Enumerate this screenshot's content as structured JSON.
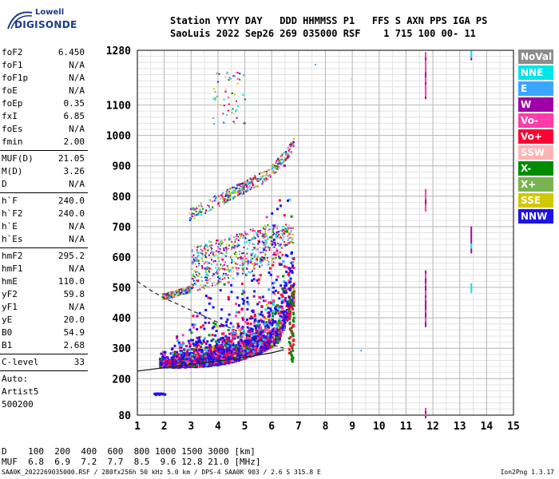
{
  "logo": {
    "top": "Lowell",
    "bottom": "DIGISONDE"
  },
  "header": {
    "line1": "Station YYYY DAY   DDD HHMMSS P1   FFS S AXN PPS IGA PS",
    "line2": "SaoLuis 2022 Sep26 269 035000 RSF    1 715 100 00- 11"
  },
  "params": [
    {
      "name": "foF2",
      "value": "6.450"
    },
    {
      "name": "foF1",
      "value": "N/A"
    },
    {
      "name": "foF1p",
      "value": "N/A"
    },
    {
      "name": "foE",
      "value": "N/A"
    },
    {
      "name": "foEp",
      "value": "0.35"
    },
    {
      "name": "fxI",
      "value": "6.85"
    },
    {
      "name": "foEs",
      "value": "N/A"
    },
    {
      "name": "fmin",
      "value": "2.00"
    },
    {
      "sep": true
    },
    {
      "name": "MUF(D)",
      "value": "21.05"
    },
    {
      "name": "M(D)",
      "value": "3.26"
    },
    {
      "name": "D",
      "value": "N/A"
    },
    {
      "sep": true
    },
    {
      "name": "h`F",
      "value": "240.0"
    },
    {
      "name": "h`F2",
      "value": "240.0"
    },
    {
      "name": "h`E",
      "value": "N/A"
    },
    {
      "name": "h`Es",
      "value": "N/A"
    },
    {
      "sep": true
    },
    {
      "name": "hmF2",
      "value": "295.2"
    },
    {
      "name": "hmF1",
      "value": "N/A"
    },
    {
      "name": "hmE",
      "value": "110.0"
    },
    {
      "name": "yF2",
      "value": "59.8"
    },
    {
      "name": "yF1",
      "value": "N/A"
    },
    {
      "name": "yE",
      "value": "20.0"
    },
    {
      "name": "B0",
      "value": "54.9"
    },
    {
      "name": "B1",
      "value": "2.68"
    },
    {
      "sep": true
    },
    {
      "name": "C-level",
      "value": "33"
    },
    {
      "sep": true
    },
    {
      "name": "Auto:",
      "value": ""
    },
    {
      "name": "Artist5",
      "value": ""
    },
    {
      "name": "500200",
      "value": ""
    }
  ],
  "legend": [
    {
      "label": "NoVal",
      "color": "#8c8c8c"
    },
    {
      "label": "NNE",
      "color": "#00e5e5"
    },
    {
      "label": "E",
      "color": "#3aa6ff"
    },
    {
      "label": "W",
      "color": "#a000a8"
    },
    {
      "label": "Vo-",
      "color": "#ff3caa"
    },
    {
      "label": "Vo+",
      "color": "#ff0032"
    },
    {
      "label": "SSW",
      "color": "#ffb4b4"
    },
    {
      "label": "X-",
      "color": "#008c00"
    },
    {
      "label": "X+",
      "color": "#78b450"
    },
    {
      "label": "SSE",
      "color": "#d2c800"
    },
    {
      "label": "NNW",
      "color": "#1e14e6"
    }
  ],
  "muf_table": {
    "line1": "D    100  200  400  600  800 1000 1500 3000 [km]",
    "line2": "MUF  6.8  6.9  7.2  7.7  8.5  9.6 12.8 21.0 [MHz]"
  },
  "footer": {
    "left": "SAA0K_2022269035000.RSF / 280fx256h 50 kHz 5.0 km / DPS-4 SAA0K 903 / 2.6 S 315.8 E",
    "right": "Ion2Png 1.3.17"
  },
  "chart_data": {
    "type": "scatter",
    "xlim": [
      1,
      15
    ],
    "ylim": [
      80,
      1280
    ],
    "x_ticks": [
      1,
      2,
      3,
      4,
      5,
      6,
      7,
      8,
      9,
      10,
      11,
      12,
      13,
      14,
      15
    ],
    "y_ticks": [
      80,
      200,
      300,
      400,
      500,
      600,
      700,
      800,
      900,
      1000,
      1100,
      1280
    ],
    "grid": true,
    "traces": [
      {
        "name": "F2 trace",
        "x_range": [
          2.0,
          6.8
        ],
        "h_range": [
          240,
          500
        ],
        "color": "#ff0032"
      },
      {
        "name": "2F trace",
        "x_range": [
          3.8,
          6.8
        ],
        "h_range": [
          460,
          700
        ],
        "color": "#ff3caa"
      },
      {
        "name": "3F trace",
        "x_range": [
          4.7,
          6.8
        ],
        "h_range": [
          720,
          960
        ],
        "color": "#a000a8"
      },
      {
        "name": "Es trace",
        "x_range": [
          1.6,
          2.0
        ],
        "h_range": [
          150,
          155
        ],
        "color": "#1e14e6"
      }
    ],
    "profile_curve": [
      [
        1.0,
        225
      ],
      [
        2.0,
        236
      ],
      [
        3.0,
        247
      ],
      [
        4.0,
        258
      ],
      [
        5.0,
        270
      ],
      [
        6.0,
        285
      ],
      [
        6.45,
        295
      ]
    ],
    "muf_curve": [
      [
        1.0,
        520
      ],
      [
        1.5,
        490
      ],
      [
        2.0,
        465
      ],
      [
        3.0,
        425
      ],
      [
        4.0,
        385
      ],
      [
        5.0,
        345
      ],
      [
        6.0,
        312
      ],
      [
        6.45,
        300
      ]
    ]
  }
}
